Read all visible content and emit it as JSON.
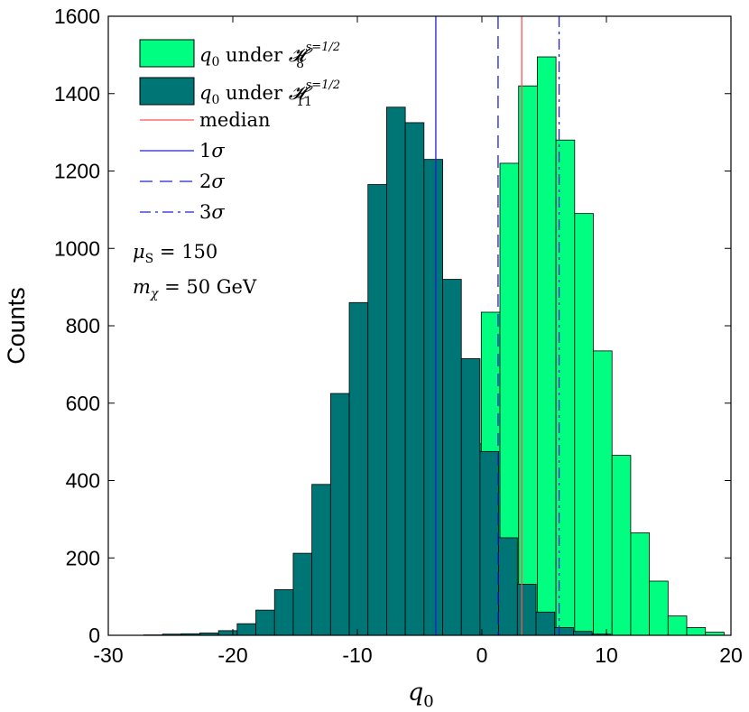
{
  "chart_data": {
    "type": "bar",
    "title": "",
    "xlabel": "q",
    "xlabel_sub": "0",
    "ylabel": "Counts",
    "xlim": [
      -30,
      20
    ],
    "ylim": [
      0,
      1600
    ],
    "xticks": [
      "-30",
      "-20",
      "-10",
      "0",
      "10",
      "20"
    ],
    "yticks": [
      "0",
      "200",
      "400",
      "600",
      "800",
      "1000",
      "1200",
      "1400",
      "1600"
    ],
    "grid": false,
    "legend_position": "top-left",
    "bin_width": 1.5,
    "series": [
      {
        "name": "q0 under H8",
        "color": "#00ff80",
        "x": [
          -8.3,
          -6.8,
          -5.3,
          -3.8,
          -2.3,
          -0.8,
          0.7,
          2.2,
          3.7,
          5.2,
          6.7,
          8.2,
          9.7,
          11.2,
          12.7,
          14.2,
          15.7,
          17.2,
          18.7
        ],
        "values": [
          5,
          10,
          40,
          125,
          275,
          495,
          835,
          1220,
          1420,
          1495,
          1280,
          1090,
          735,
          465,
          265,
          140,
          50,
          20,
          8
        ]
      },
      {
        "name": "q0 under H11",
        "color": "#007575",
        "x": [
          -26.4,
          -24.9,
          -23.4,
          -21.9,
          -20.4,
          -18.9,
          -17.4,
          -15.9,
          -14.4,
          -12.9,
          -11.4,
          -9.9,
          -8.4,
          -6.9,
          -5.4,
          -3.9,
          -2.4,
          -0.9,
          0.6,
          2.1,
          3.6,
          5.1,
          6.6,
          8.1,
          9.6
        ],
        "values": [
          1,
          3,
          4,
          6,
          12,
          30,
          65,
          118,
          212,
          390,
          625,
          860,
          1165,
          1365,
          1325,
          1230,
          920,
          715,
          475,
          252,
          132,
          60,
          20,
          10,
          3
        ]
      }
    ],
    "vlines": [
      {
        "name": "median",
        "x": 3.2,
        "style": "solid",
        "color": "#ff5050"
      },
      {
        "name": "1σ",
        "x": -3.7,
        "style": "solid",
        "color": "#2020d0"
      },
      {
        "name": "2σ",
        "x": 1.3,
        "style": "dashed",
        "color": "#2020d0"
      },
      {
        "name": "3σ",
        "x": 6.2,
        "style": "dashdot",
        "color": "#2020d0"
      }
    ],
    "legend": {
      "h8": {
        "var": "q",
        "sub": "0",
        "under": " under ",
        "H": "𝓗",
        "sup": "s=1/2",
        "hsub": "8"
      },
      "h11": {
        "var": "q",
        "sub": "0",
        "under": " under ",
        "H": "𝓗",
        "sup": "s=1/2",
        "hsub": "11"
      },
      "median": "median",
      "sigma1": {
        "num": "1",
        "sym": "σ"
      },
      "sigma2": {
        "num": "2",
        "sym": "σ"
      },
      "sigma3": {
        "num": "3",
        "sym": "σ"
      }
    },
    "annotations": {
      "mu": {
        "sym": "μ",
        "sub": "S",
        "rest": " = 150"
      },
      "m": {
        "sym": "m",
        "sub": "χ",
        "rest": " = 50 GeV"
      }
    }
  }
}
